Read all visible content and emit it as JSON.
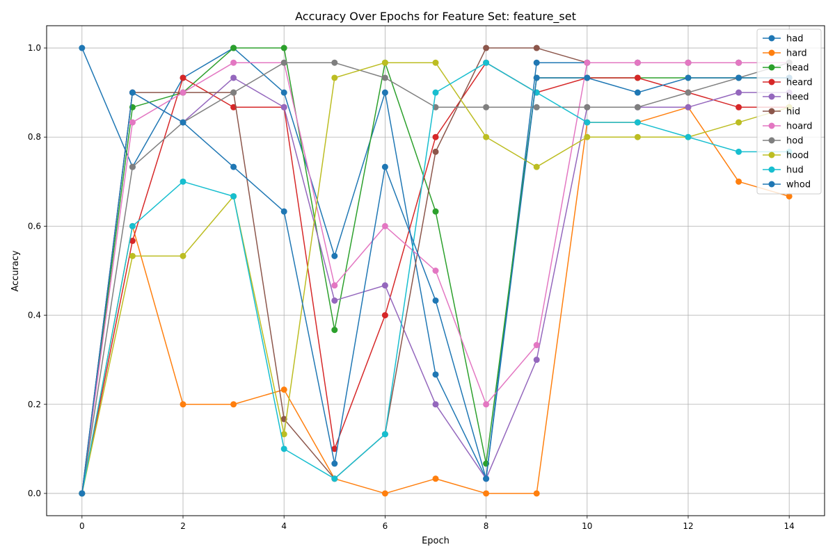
{
  "chart_data": {
    "type": "line",
    "title": "Accuracy Over Epochs for Feature Set: feature_set",
    "xlabel": "Epoch",
    "ylabel": "Accuracy",
    "xlim": [
      -0.7,
      14.7
    ],
    "ylim": [
      -0.05,
      1.05
    ],
    "xticks": [
      0,
      2,
      4,
      6,
      8,
      10,
      12,
      14
    ],
    "yticks": [
      0.0,
      0.2,
      0.4,
      0.6,
      0.8,
      1.0
    ],
    "ytick_labels": [
      "0.0",
      "0.2",
      "0.4",
      "0.6",
      "0.8",
      "1.0"
    ],
    "grid": true,
    "legend_position": "top-right",
    "x": [
      0,
      1,
      2,
      3,
      4,
      5,
      6,
      7,
      8,
      9,
      10,
      11,
      12,
      13,
      14
    ],
    "series": [
      {
        "name": "had",
        "color": "#1f77b4",
        "values": [
          1.0,
          0.733,
          0.933,
          1.0,
          0.9,
          0.533,
          0.9,
          0.267,
          0.033,
          0.967,
          0.967,
          0.967,
          0.967,
          0.967,
          0.967
        ]
      },
      {
        "name": "hard",
        "color": "#ff7f0e",
        "values": [
          0.0,
          0.6,
          0.2,
          0.2,
          0.233,
          0.033,
          0.0,
          0.033,
          0.0,
          0.0,
          0.833,
          0.833,
          0.867,
          0.7,
          0.667
        ]
      },
      {
        "name": "head",
        "color": "#2ca02c",
        "values": [
          0.0,
          0.867,
          0.9,
          1.0,
          1.0,
          0.367,
          0.967,
          0.633,
          0.067,
          0.933,
          0.933,
          0.933,
          0.933,
          0.933,
          0.933
        ]
      },
      {
        "name": "heard",
        "color": "#d62728",
        "values": [
          0.0,
          0.567,
          0.933,
          0.867,
          0.867,
          0.1,
          0.4,
          0.8,
          0.967,
          0.9,
          0.933,
          0.933,
          0.9,
          0.867,
          0.867
        ]
      },
      {
        "name": "heed",
        "color": "#9467bd",
        "values": [
          0.0,
          0.9,
          0.833,
          0.933,
          0.867,
          0.433,
          0.467,
          0.2,
          0.033,
          0.3,
          0.867,
          0.867,
          0.867,
          0.9,
          0.9
        ]
      },
      {
        "name": "hid",
        "color": "#8c564b",
        "values": [
          0.0,
          0.9,
          0.9,
          0.9,
          0.167,
          0.033,
          0.133,
          0.767,
          1.0,
          1.0,
          0.967,
          0.967,
          0.967,
          0.967,
          0.967
        ]
      },
      {
        "name": "hoard",
        "color": "#e377c2",
        "values": [
          0.0,
          0.833,
          0.9,
          0.967,
          0.967,
          0.467,
          0.6,
          0.5,
          0.2,
          0.333,
          0.967,
          0.967,
          0.967,
          0.967,
          0.967
        ]
      },
      {
        "name": "hod",
        "color": "#7f7f7f",
        "values": [
          0.0,
          0.733,
          0.833,
          0.9,
          0.967,
          0.967,
          0.933,
          0.867,
          0.867,
          0.867,
          0.867,
          0.867,
          0.9,
          0.933,
          0.967
        ]
      },
      {
        "name": "hood",
        "color": "#bcbd22",
        "values": [
          0.0,
          0.533,
          0.533,
          0.667,
          0.133,
          0.933,
          0.967,
          0.967,
          0.8,
          0.733,
          0.8,
          0.8,
          0.8,
          0.833,
          0.867
        ]
      },
      {
        "name": "hud",
        "color": "#17becf",
        "values": [
          0.0,
          0.6,
          0.7,
          0.667,
          0.1,
          0.033,
          0.133,
          0.9,
          0.967,
          0.9,
          0.833,
          0.833,
          0.8,
          0.767,
          0.767
        ]
      },
      {
        "name": "whod",
        "color": "#1f77b4",
        "values": [
          0.0,
          0.9,
          0.833,
          0.733,
          0.633,
          0.067,
          0.733,
          0.433,
          0.033,
          0.933,
          0.933,
          0.9,
          0.933,
          0.933,
          0.933
        ]
      }
    ]
  }
}
